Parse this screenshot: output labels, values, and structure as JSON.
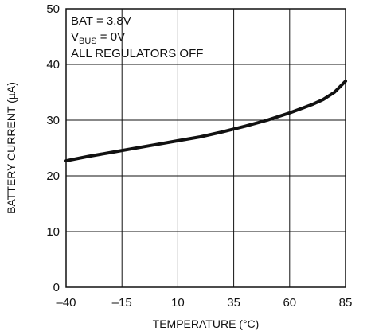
{
  "chart_data": {
    "type": "line",
    "title": "",
    "xlabel": "TEMPERATURE (°C)",
    "ylabel": "BATTERY CURRENT (µA)",
    "xlim": [
      -40,
      85
    ],
    "ylim": [
      0,
      50
    ],
    "x_ticks": [
      -40,
      -15,
      10,
      35,
      60,
      85
    ],
    "x_tick_labels": [
      "–40",
      "–15",
      "10",
      "35",
      "60",
      "85"
    ],
    "y_ticks": [
      0,
      10,
      20,
      30,
      40,
      50
    ],
    "y_tick_labels": [
      "0",
      "10",
      "20",
      "30",
      "40",
      "50"
    ],
    "grid": true,
    "annotations": {
      "line1": "BAT = 3.8V",
      "line2_main": "V",
      "line2_sub": "BUS",
      "line2_rest": " = 0V",
      "line3": "ALL REGULATORS OFF"
    },
    "series": [
      {
        "x": [
          -40,
          -30,
          -20,
          -10,
          0,
          10,
          20,
          30,
          40,
          50,
          60,
          70,
          75,
          80,
          85
        ],
        "y": [
          22.7,
          23.5,
          24.2,
          24.9,
          25.6,
          26.3,
          27.0,
          27.9,
          28.9,
          30.0,
          31.3,
          32.8,
          33.7,
          35.0,
          37.0
        ]
      }
    ]
  }
}
